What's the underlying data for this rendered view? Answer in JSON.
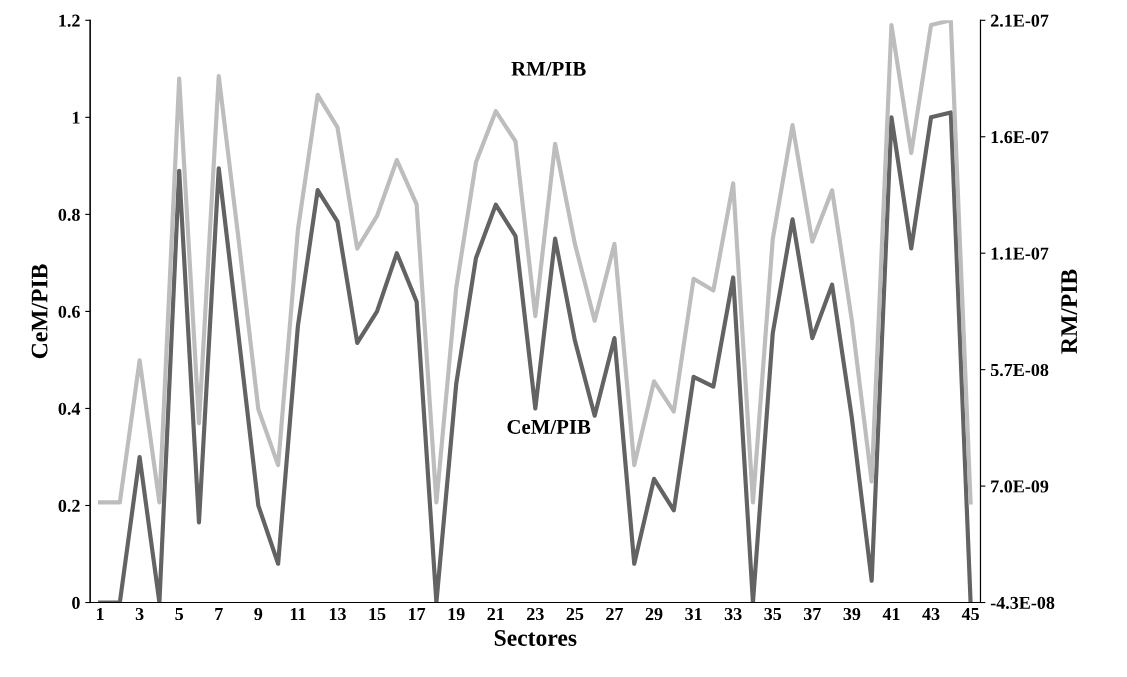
{
  "chart_data": {
    "type": "line",
    "xlabel": "Sectores",
    "ylabel": "CeM/PIB",
    "y2label": "RM/PIB",
    "categories": [
      "1",
      null,
      "3",
      null,
      "5",
      null,
      "7",
      null,
      "9",
      null,
      "11",
      null,
      "13",
      null,
      "15",
      null,
      "17",
      null,
      "19",
      null,
      "21",
      null,
      "23",
      null,
      "25",
      null,
      "27",
      null,
      "29",
      null,
      "31",
      null,
      "33",
      null,
      "35",
      null,
      "37",
      null,
      "39",
      null,
      "41",
      null,
      "43",
      null,
      "45"
    ],
    "series": [
      {
        "color": "#bdbdbd",
        "axis": "y2",
        "values": [
          0,
          0,
          6.1e-08,
          0,
          1.82e-07,
          3.4e-08,
          1.83e-07,
          1.13e-07,
          4e-08,
          1.6e-08,
          1.17e-07,
          1.75e-07,
          1.61e-07,
          1.09e-07,
          1.23e-07,
          1.47e-07,
          1.28e-07,
          0,
          9.2e-08,
          1.46e-07,
          1.68e-07,
          1.55e-07,
          8e-08,
          1.54e-07,
          1.11e-07,
          7.8e-08,
          1.11e-07,
          1.6e-08,
          5.2e-08,
          3.9e-08,
          9.6e-08,
          9.1e-08,
          1.37e-07,
          0,
          1.13e-07,
          1.62e-07,
          1.12e-07,
          1.34e-07,
          7.8e-08,
          9e-09,
          2.05e-07,
          1.5e-07,
          2.05e-07,
          2.07e-07,
          0
        ]
      },
      {
        "color": "#636363",
        "values": [
          0,
          0,
          0.3,
          0,
          0.89,
          0.165,
          0.895,
          0.55,
          0.2,
          0.08,
          0.57,
          0.85,
          0.785,
          0.535,
          0.6,
          0.72,
          0.62,
          0,
          0.45,
          0.71,
          0.82,
          0.755,
          0.4,
          0.75,
          0.54,
          0.385,
          0.545,
          0.08,
          0.255,
          0.19,
          0.465,
          0.445,
          0.67,
          0,
          0.555,
          0.79,
          0.545,
          0.655,
          0.38,
          0.045,
          1.0,
          0.73,
          1.0,
          1.01,
          0
        ]
      }
    ],
    "ylim": [
      0,
      1.2
    ],
    "yticks": [
      0,
      0.2,
      0.4,
      0.6,
      0.8,
      1,
      1.2
    ],
    "y2lim": [
      -4.3e-08,
      2.07e-07
    ],
    "y2ticks": [
      {
        "value": -4.3e-08,
        "label": "-4.3E-08"
      },
      {
        "value": 7e-09,
        "label": "7.0E-09"
      },
      {
        "value": 5.7e-08,
        "label": "5.7E-08"
      },
      {
        "value": 1.07e-07,
        "label": "1.1E-07"
      },
      {
        "value": 1.57e-07,
        "label": "1.6E-07"
      },
      {
        "value": 2.07e-07,
        "label": "2.1E-07"
      }
    ],
    "annotations": [
      "RM/PIB",
      "CeM/PIB"
    ],
    "grid": false,
    "legend": false
  }
}
